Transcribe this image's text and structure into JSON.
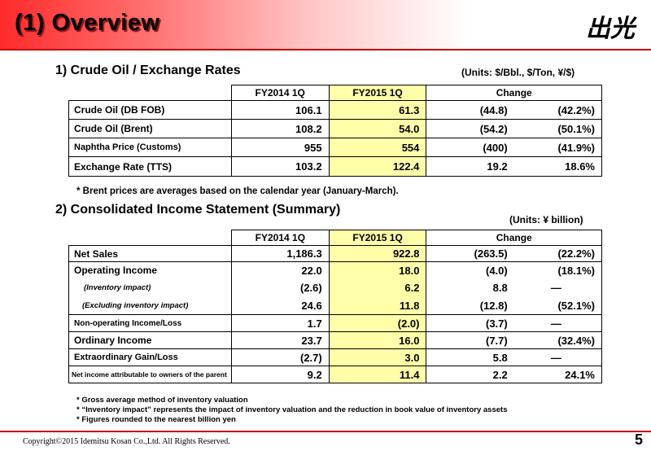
{
  "header": {
    "title": "(1) Overview",
    "logo_text": "出光"
  },
  "section1": {
    "title": "1) Crude Oil / Exchange Rates",
    "units": "(Units: $/Bbl., $/Ton, ¥/$)",
    "columns": {
      "prev": "FY2014 1Q",
      "curr": "FY2015 1Q",
      "change": "Change"
    },
    "rows": [
      {
        "label": "Crude Oil (DB FOB)",
        "prev": "106.1",
        "curr": "61.3",
        "chg": "(44.8)",
        "pct": "(42.2%)"
      },
      {
        "label": "Crude Oil (Brent)",
        "prev": "108.2",
        "curr": "54.0",
        "chg": "(54.2)",
        "pct": "(50.1%)"
      },
      {
        "label": "Naphtha Price (Customs)",
        "prev": "955",
        "curr": "554",
        "chg": "(400)",
        "pct": "(41.9%)"
      },
      {
        "label": "Exchange Rate (TTS)",
        "prev": "103.2",
        "curr": "122.4",
        "chg": "19.2",
        "pct": "18.6%"
      }
    ],
    "note": "* Brent prices are averages based on the calendar year (January-March)."
  },
  "section2": {
    "title": "2) Consolidated Income Statement (Summary)",
    "units": "(Units: ¥ billion)",
    "columns": {
      "prev": "FY2014 1Q",
      "curr": "FY2015 1Q",
      "change": "Change"
    },
    "rows": [
      {
        "label": "Net Sales",
        "prev": "1,186.3",
        "curr": "922.8",
        "chg": "(263.5)",
        "pct": "(22.2%)"
      },
      {
        "label": "Operating Income",
        "prev": "22.0",
        "curr": "18.0",
        "chg": "(4.0)",
        "pct": "(18.1%)"
      },
      {
        "label": "(Inventory impact)",
        "prev": "(2.6)",
        "curr": "6.2",
        "chg": "8.8",
        "pct": "—"
      },
      {
        "label": "(Excluding inventory impact)",
        "prev": "24.6",
        "curr": "11.8",
        "chg": "(12.8)",
        "pct": "(52.1%)"
      },
      {
        "label": "Non-operating Income/Loss",
        "prev": "1.7",
        "curr": "(2.0)",
        "chg": "(3.7)",
        "pct": "—"
      },
      {
        "label": "Ordinary Income",
        "prev": "23.7",
        "curr": "16.0",
        "chg": "(7.7)",
        "pct": "(32.4%)"
      },
      {
        "label": "Extraordinary Gain/Loss",
        "prev": "(2.7)",
        "curr": "3.0",
        "chg": "5.8",
        "pct": "—"
      },
      {
        "label": "Net income attributable to owners of the parent",
        "prev": "9.2",
        "curr": "11.4",
        "chg": "2.2",
        "pct": "24.1%"
      }
    ],
    "notes": [
      "* Gross average method of inventory valuation",
      "* “Inventory impact” represents the impact of inventory valuation and the reduction in book value of inventory assets",
      "* Figures rounded to the nearest billion yen"
    ]
  },
  "footer": {
    "copyright": "Copyright©2015 Idemitsu Kosan Co.,Ltd. All Rights Reserved.",
    "page": "5"
  },
  "colors": {
    "accent": "#c00000",
    "highlight": "#ffffaa"
  }
}
